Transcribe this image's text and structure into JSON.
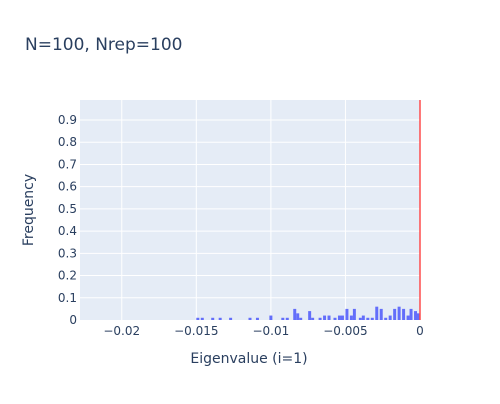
{
  "chart_data": {
    "type": "bar",
    "title": "N=100, Nrep=100",
    "xlabel": "Eigenvalue (i=1)",
    "ylabel": "Frequency",
    "xlim": [
      -0.0228,
      0.0
    ],
    "ylim": [
      0,
      0.99
    ],
    "xticks": [
      -0.02,
      -0.015,
      -0.01,
      -0.005,
      0
    ],
    "xtick_labels": [
      "−0.02",
      "−0.015",
      "−0.01",
      "−0.005",
      "0"
    ],
    "yticks": [
      0,
      0.1,
      0.2,
      0.3,
      0.4,
      0.5,
      0.6,
      0.7,
      0.8,
      0.9
    ],
    "ytick_labels": [
      "0",
      "0.1",
      "0.2",
      "0.3",
      "0.4",
      "0.5",
      "0.6",
      "0.7",
      "0.8",
      "0.9"
    ],
    "grid": true,
    "bin_width": 0.0002,
    "x": [
      -0.015,
      -0.0147,
      -0.014,
      -0.0135,
      -0.0128,
      -0.0115,
      -0.011,
      -0.0101,
      -0.0093,
      -0.009,
      -0.0085,
      -0.0083,
      -0.0081,
      -0.0075,
      -0.0073,
      -0.0068,
      -0.0065,
      -0.0062,
      -0.0058,
      -0.0055,
      -0.0053,
      -0.005,
      -0.0047,
      -0.0045,
      -0.0041,
      -0.0039,
      -0.0036,
      -0.0033,
      -0.003,
      -0.0027,
      -0.0024,
      -0.0021,
      -0.0018,
      -0.0015,
      -0.0012,
      -0.0009,
      -0.0007,
      -0.0004,
      -0.0002
    ],
    "values": [
      0.01,
      0.01,
      0.01,
      0.01,
      0.01,
      0.01,
      0.01,
      0.02,
      0.01,
      0.01,
      0.05,
      0.03,
      0.01,
      0.04,
      0.01,
      0.01,
      0.02,
      0.02,
      0.01,
      0.02,
      0.02,
      0.05,
      0.02,
      0.05,
      0.01,
      0.02,
      0.01,
      0.01,
      0.06,
      0.05,
      0.01,
      0.02,
      0.05,
      0.06,
      0.05,
      0.02,
      0.05,
      0.04,
      0.03
    ],
    "bar_color": "#636efa",
    "reference_line": {
      "x": 0,
      "color": "#ff4d4d"
    },
    "plot_bg": "#e5ecf6"
  }
}
